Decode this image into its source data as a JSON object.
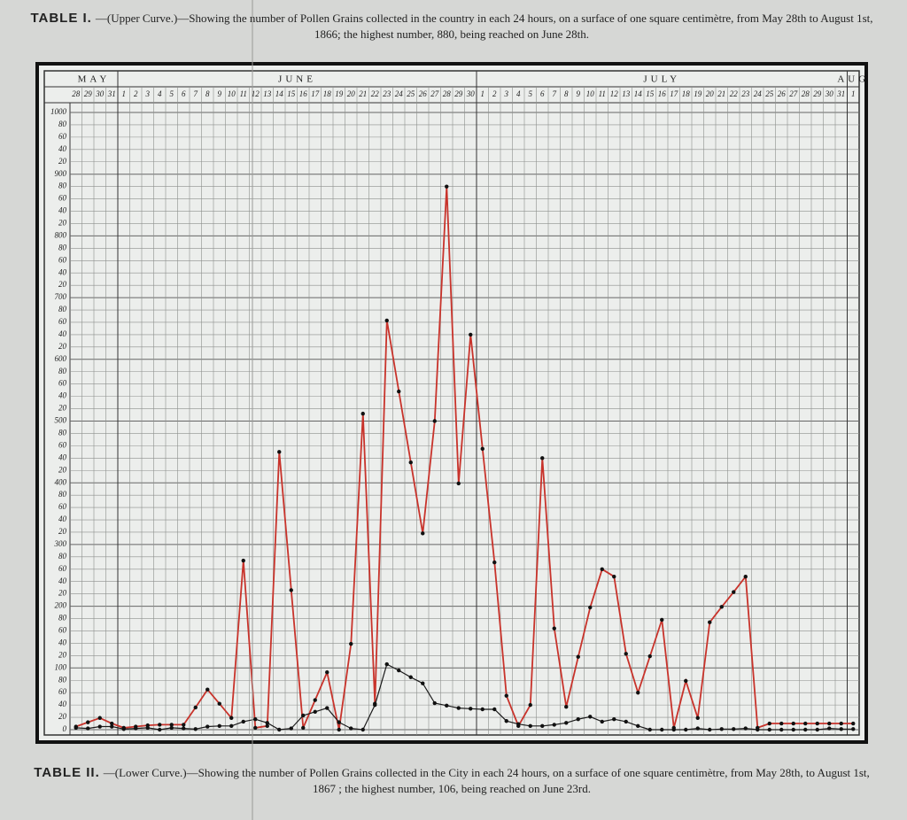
{
  "chart_data": {
    "type": "line",
    "title": {
      "label": "TABLE I.",
      "text": "—(Upper Curve.)—Showing the number of Pollen Grains collected in the country in each 24 hours, on a surface of one square centimètre, from May 28th to August 1st, 1866; the highest number, 880, being reached on June 28th."
    },
    "caption": {
      "label": "TABLE II.",
      "text": "—(Lower Curve.)—Showing the number of Pollen Grains collected in the City in each 24 hours, on a surface of one square centimètre, from May 28th, to August 1st, 1867 ; the highest number, 106, being reached on June 23rd."
    },
    "months": [
      "MAY",
      "JUNE",
      "JULY",
      "AUG"
    ],
    "categories": [
      "28",
      "29",
      "30",
      "31",
      "1",
      "2",
      "3",
      "4",
      "5",
      "6",
      "7",
      "8",
      "9",
      "10",
      "11",
      "12",
      "13",
      "14",
      "15",
      "16",
      "17",
      "18",
      "19",
      "20",
      "21",
      "22",
      "23",
      "24",
      "25",
      "26",
      "27",
      "28",
      "29",
      "30",
      "1",
      "2",
      "3",
      "4",
      "5",
      "6",
      "7",
      "8",
      "9",
      "10",
      "11",
      "12",
      "13",
      "14",
      "15",
      "16",
      "17",
      "18",
      "19",
      "20",
      "21",
      "22",
      "23",
      "24",
      "25",
      "26",
      "27",
      "28",
      "29",
      "30",
      "31",
      "1"
    ],
    "series": [
      {
        "color": "#c8332b",
        "values": [
          5,
          12,
          19,
          10,
          3,
          5,
          7,
          8,
          8,
          8,
          36,
          65,
          42,
          19,
          274,
          3,
          6,
          450,
          226,
          3,
          48,
          93,
          0,
          139,
          512,
          42,
          663,
          548,
          433,
          318,
          500,
          880,
          399,
          640,
          455,
          271,
          55,
          6,
          40,
          440,
          164,
          37,
          118,
          198,
          260,
          248,
          123,
          60,
          119,
          178,
          3,
          79,
          19,
          174,
          199,
          223,
          248,
          3,
          10,
          10,
          10,
          10,
          10,
          10,
          10,
          10
        ]
      },
      {
        "color": "#1a1a1a",
        "values": [
          3,
          2,
          5,
          5,
          1,
          2,
          3,
          0,
          3,
          2,
          1,
          5,
          6,
          6,
          13,
          17,
          11,
          0,
          2,
          23,
          29,
          35,
          12,
          2,
          0,
          40,
          106,
          96,
          85,
          75,
          43,
          39,
          35,
          34,
          33,
          33,
          14,
          9,
          6,
          6,
          8,
          11,
          17,
          21,
          13,
          17,
          13,
          6,
          0,
          0,
          0,
          0,
          2,
          0,
          1,
          1,
          2,
          0,
          0,
          0,
          0,
          0,
          0,
          2,
          1,
          1
        ]
      }
    ],
    "ylim": [
      0,
      1000
    ],
    "yticks": [
      0,
      {
        "value": 20,
        "label": "20"
      },
      {
        "value": 40,
        "label": "40"
      },
      {
        "value": 60,
        "label": "60"
      },
      {
        "value": 80,
        "label": "80"
      },
      100,
      {
        "value": 120,
        "label": "20"
      },
      {
        "value": 140,
        "label": "40"
      },
      {
        "value": 160,
        "label": "60"
      },
      {
        "value": 180,
        "label": "80"
      },
      200,
      {
        "value": 220,
        "label": "20"
      },
      {
        "value": 240,
        "label": "40"
      },
      {
        "value": 260,
        "label": "60"
      },
      {
        "value": 280,
        "label": "80"
      },
      300,
      {
        "value": 320,
        "label": "20"
      },
      {
        "value": 340,
        "label": "40"
      },
      {
        "value": 360,
        "label": "60"
      },
      {
        "value": 380,
        "label": "80"
      },
      400,
      {
        "value": 420,
        "label": "20"
      },
      {
        "value": 440,
        "label": "40"
      },
      {
        "value": 460,
        "label": "60"
      },
      {
        "value": 480,
        "label": "80"
      },
      500,
      {
        "value": 520,
        "label": "20"
      },
      {
        "value": 540,
        "label": "40"
      },
      {
        "value": 560,
        "label": "60"
      },
      {
        "value": 580,
        "label": "80"
      },
      600,
      {
        "value": 620,
        "label": "20"
      },
      {
        "value": 640,
        "label": "40"
      },
      {
        "value": 660,
        "label": "60"
      },
      {
        "value": 680,
        "label": "80"
      },
      700,
      {
        "value": 720,
        "label": "20"
      },
      {
        "value": 740,
        "label": "40"
      },
      {
        "value": 760,
        "label": "60"
      },
      {
        "value": 780,
        "label": "80"
      },
      800,
      {
        "value": 820,
        "label": "20"
      },
      {
        "value": 840,
        "label": "40"
      },
      {
        "value": 860,
        "label": "60"
      },
      {
        "value": 880,
        "label": "80"
      },
      900,
      {
        "value": 920,
        "label": "20"
      },
      {
        "value": 940,
        "label": "40"
      },
      {
        "value": 960,
        "label": "60"
      },
      {
        "value": 980,
        "label": "80"
      },
      1000
    ],
    "grid": true
  }
}
